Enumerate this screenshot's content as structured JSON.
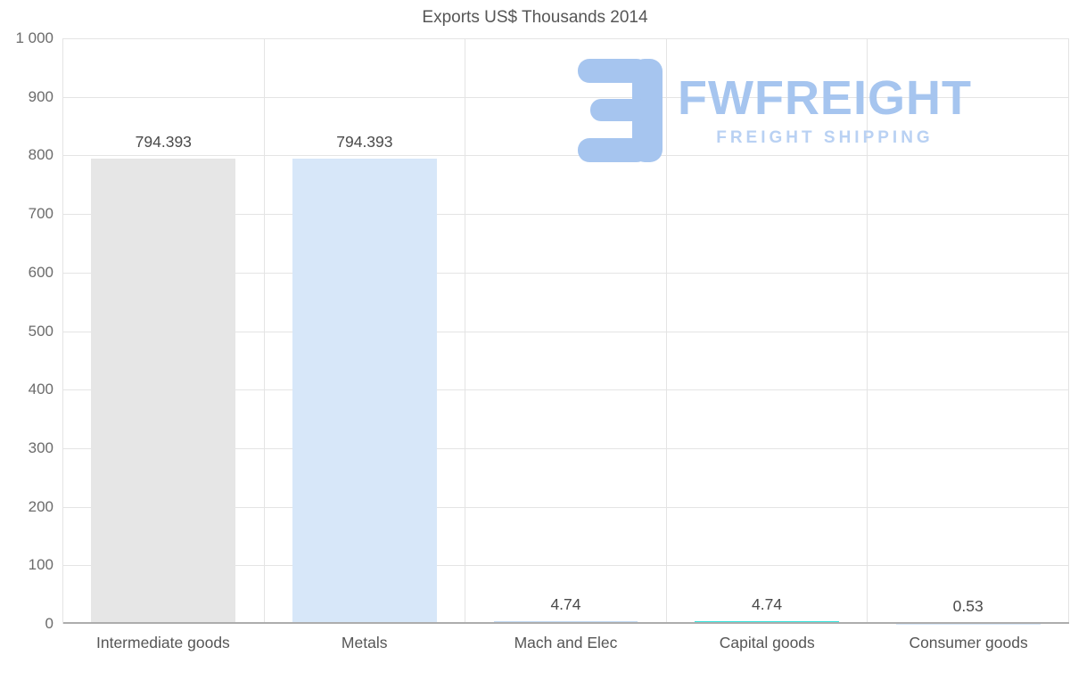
{
  "chart_data": {
    "type": "bar",
    "title": "Exports US$ Thousands 2014",
    "categories": [
      "Intermediate goods",
      "Metals",
      "Mach and Elec",
      "Capital goods",
      "Consumer goods"
    ],
    "values": [
      794.393,
      794.393,
      4.74,
      4.74,
      0.53
    ],
    "value_labels": [
      "794.393",
      "794.393",
      "4.74",
      "4.74",
      "0.53"
    ],
    "bar_colors": [
      "#e6e6e6",
      "#d7e7f9",
      "#c3daf3",
      "#35e3dc",
      "#d7e7f9"
    ],
    "xlabel": "",
    "ylabel": "",
    "ylim": [
      0,
      1000
    ],
    "y_ticks": [
      1000,
      900,
      800,
      700,
      600,
      500,
      400,
      300,
      200,
      100,
      0
    ],
    "y_tick_labels": [
      "1 000",
      "900",
      "800",
      "700",
      "600",
      "500",
      "400",
      "300",
      "200",
      "100",
      "0"
    ],
    "grid": true,
    "legend": false
  },
  "watermark": {
    "brand": "FWFREIGHT",
    "tagline": "FREIGHT SHIPPING",
    "color": "#a6c5ef"
  }
}
